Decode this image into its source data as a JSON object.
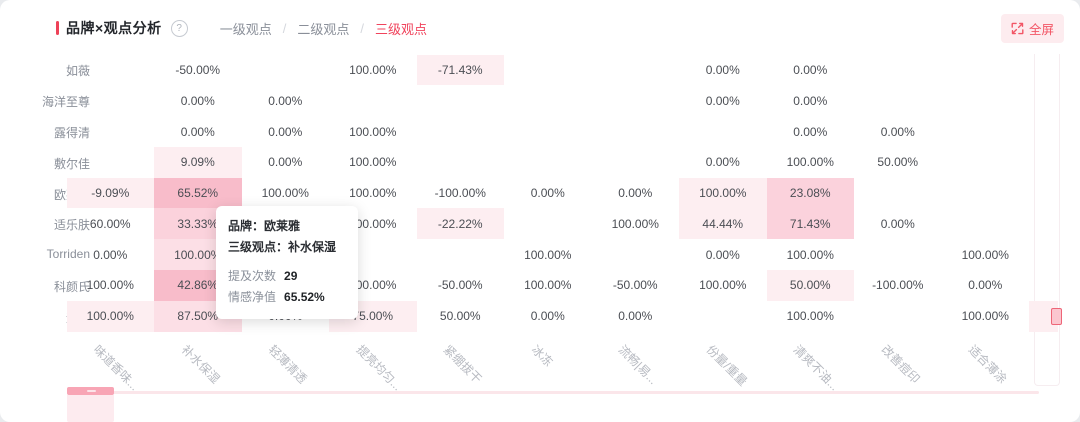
{
  "header": {
    "title": "品牌×观点分析",
    "help_icon": "?",
    "tabs": [
      {
        "label": "一级观点",
        "active": false
      },
      {
        "label": "二级观点",
        "active": false
      },
      {
        "label": "三级观点",
        "active": true
      }
    ],
    "separator": "/",
    "fullscreen_label": "全屏"
  },
  "colors": {
    "accent_red": "#ee4258",
    "active_tab": "#f0435c",
    "fullscreen_bg": "#fdecef",
    "fullscreen_fg": "#f25666"
  },
  "tooltip": {
    "brand_label": "品牌：",
    "brand": "欧莱雅",
    "level_label": "三级观点：",
    "level": "补水保湿",
    "mentions_label": "提及次数",
    "mentions": "29",
    "sentiment_label": "情感净值",
    "sentiment": "65.52%"
  },
  "chart_data": {
    "type": "heatmap",
    "title": "品牌×观点分析（三级观点）",
    "x_categories": [
      "味道香味...",
      "补水保湿",
      "轻薄清透",
      "提亮均匀...",
      "紧绷拔干",
      "冰冻",
      "流畅|易...",
      "份量/重量",
      "清爽不油...",
      "改善痘印",
      "适合薄涂",
      ""
    ],
    "y_categories": [
      "如薇",
      "海洋至尊",
      "露得清",
      "敷尔佳",
      "欧莱雅",
      "适乐肤",
      "Torriden",
      "科颜氏",
      "迪奥"
    ],
    "value_unit": "情感净值 %",
    "palette": {
      "l": "#fdeef1",
      "ml": "#fcdfe6",
      "m": "#fbd2dc",
      "d": "#f8bcca"
    },
    "rows": [
      {
        "brand": "如薇",
        "values": [
          "",
          "-50.00%",
          "",
          "100.00%",
          "-71.43%",
          "",
          "",
          "0.00%",
          "0.00%",
          "",
          "",
          ""
        ],
        "bg": [
          "",
          "",
          "",
          "",
          "l",
          "",
          "",
          "",
          "",
          "",
          "",
          ""
        ]
      },
      {
        "brand": "海洋至尊",
        "values": [
          "",
          "0.00%",
          "0.00%",
          "",
          "",
          "",
          "",
          "0.00%",
          "0.00%",
          "",
          "",
          ""
        ],
        "bg": [
          "",
          "",
          "",
          "",
          "",
          "",
          "",
          "",
          "",
          "",
          "",
          ""
        ]
      },
      {
        "brand": "露得清",
        "values": [
          "",
          "0.00%",
          "0.00%",
          "100.00%",
          "",
          "",
          "",
          "",
          "0.00%",
          "0.00%",
          "",
          ""
        ],
        "bg": [
          "",
          "",
          "",
          "",
          "",
          "",
          "",
          "",
          "",
          "",
          "",
          ""
        ]
      },
      {
        "brand": "敷尔佳",
        "values": [
          "",
          "9.09%",
          "0.00%",
          "100.00%",
          "",
          "",
          "",
          "0.00%",
          "100.00%",
          "50.00%",
          "",
          ""
        ],
        "bg": [
          "",
          "l",
          "",
          "",
          "",
          "",
          "",
          "",
          "",
          "",
          "",
          ""
        ]
      },
      {
        "brand": "欧莱雅",
        "values": [
          "-9.09%",
          "65.52%",
          "100.00%",
          "100.00%",
          "-100.00%",
          "0.00%",
          "0.00%",
          "100.00%",
          "23.08%",
          "",
          "",
          ""
        ],
        "bg": [
          "l",
          "d",
          "",
          "",
          "",
          "",
          "",
          "l",
          "m",
          "",
          "",
          ""
        ]
      },
      {
        "brand": "适乐肤",
        "values": [
          "60.00%",
          "33.33%",
          "",
          "100.00%",
          "-22.22%",
          "",
          "100.00%",
          "44.44%",
          "71.43%",
          "0.00%",
          "",
          ""
        ],
        "bg": [
          "",
          "m",
          "",
          "",
          "l",
          "",
          "",
          "l",
          "m",
          "",
          "",
          ""
        ]
      },
      {
        "brand": "Torriden",
        "values": [
          "0.00%",
          "100.00%",
          "",
          "",
          "",
          "100.00%",
          "",
          "0.00%",
          "100.00%",
          "",
          "100.00%",
          ""
        ],
        "bg": [
          "",
          "ml",
          "",
          "",
          "",
          "",
          "",
          "",
          "",
          "",
          "",
          ""
        ]
      },
      {
        "brand": "科颜氏",
        "values": [
          "100.00%",
          "42.86%",
          "",
          "100.00%",
          "-50.00%",
          "100.00%",
          "-50.00%",
          "100.00%",
          "50.00%",
          "-100.00%",
          "0.00%",
          ""
        ],
        "bg": [
          "",
          "d",
          "",
          "",
          "",
          "",
          "",
          "",
          "l",
          "",
          "",
          ""
        ]
      },
      {
        "brand": "迪奥",
        "values": [
          "100.00%",
          "87.50%",
          "0.00%",
          "75.00%",
          "50.00%",
          "0.00%",
          "0.00%",
          "",
          "100.00%",
          "",
          "100.00%",
          ""
        ],
        "bg": [
          "l",
          "ml",
          "",
          "l",
          "",
          "",
          "",
          "",
          "",
          "",
          "",
          "l"
        ]
      }
    ],
    "hovered_cell": {
      "brand": "欧莱雅",
      "viewpoint": "补水保湿",
      "mentions": 29,
      "net_sentiment": "65.52%"
    },
    "legend_position": "none",
    "grid": false
  }
}
